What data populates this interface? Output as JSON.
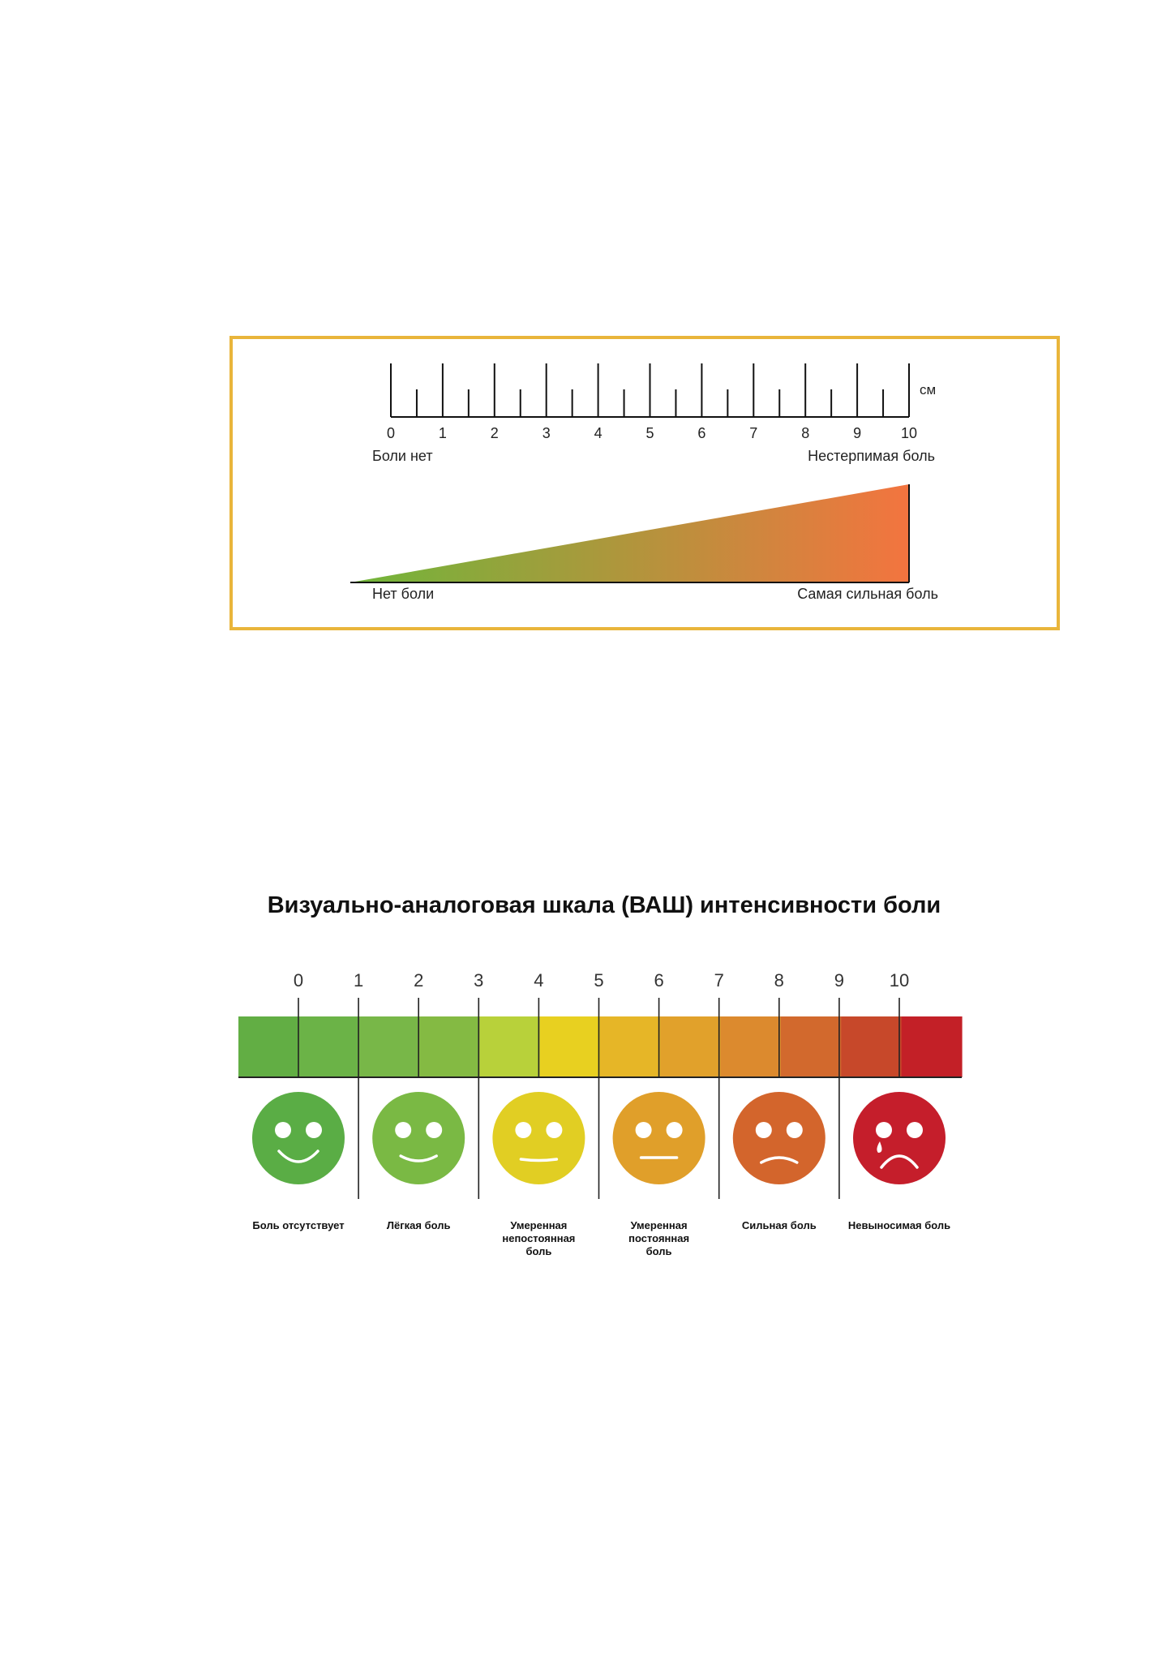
{
  "ruler": {
    "unit_label": "см",
    "min": 0,
    "max": 10,
    "ticks": [
      "0",
      "1",
      "2",
      "3",
      "4",
      "5",
      "6",
      "7",
      "8",
      "9",
      "10"
    ],
    "left_label": "Боли нет",
    "right_label": "Нестерпимая боль"
  },
  "wedge": {
    "left_label": "Нет боли",
    "right_label": "Самая сильная боль",
    "color_start": "#6fb63a",
    "color_end": "#f3743f"
  },
  "vas": {
    "title": "Визуально-аналоговая шкала (ВАШ) интенсивности боли",
    "ticks": [
      "0",
      "1",
      "2",
      "3",
      "4",
      "5",
      "6",
      "7",
      "8",
      "9",
      "10"
    ],
    "segment_colors": [
      "#62ae44",
      "#6bb347",
      "#78b748",
      "#84ba43",
      "#b8d13a",
      "#e8d020",
      "#e6b627",
      "#e1a12b",
      "#dc8a2e",
      "#d2692d",
      "#c7482a",
      "#c32027"
    ],
    "faces": [
      {
        "mood": "big-smile-icon",
        "color": "#5aad45",
        "label": "Боль отсутствует"
      },
      {
        "mood": "smile-icon",
        "color": "#7ab944",
        "label": "Лёгкая боль"
      },
      {
        "mood": "slight-smile-icon",
        "color": "#e1ce23",
        "label": "Умеренная непостоянная боль"
      },
      {
        "mood": "neutral-face-icon",
        "color": "#e09f2a",
        "label": "Умеренная постоянная боль"
      },
      {
        "mood": "frown-icon",
        "color": "#d3652c",
        "label": "Сильная боль"
      },
      {
        "mood": "crying-face-icon",
        "color": "#c51e2b",
        "label": "Невыносимая боль"
      }
    ]
  }
}
